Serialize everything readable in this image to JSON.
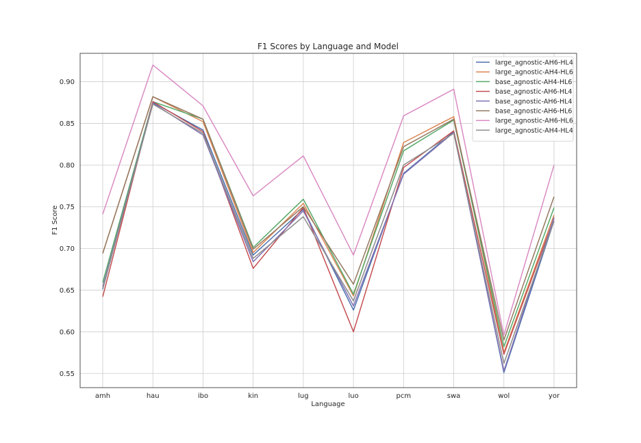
{
  "chart_data": {
    "type": "line",
    "title": "F1 Scores by Language and Model",
    "xlabel": "Language",
    "ylabel": "F1 Score",
    "categories": [
      "amh",
      "hau",
      "ibo",
      "kin",
      "lug",
      "luo",
      "pcm",
      "swa",
      "wol",
      "yor"
    ],
    "ylim": [
      0.533,
      0.934
    ],
    "yticks": [
      0.55,
      0.6,
      0.65,
      0.7,
      0.75,
      0.8,
      0.85,
      0.9
    ],
    "ytick_labels": [
      "0.55",
      "0.60",
      "0.65",
      "0.70",
      "0.75",
      "0.80",
      "0.85",
      "0.90"
    ],
    "grid": true,
    "legend_position": "top-right",
    "series": [
      {
        "name": "large_agnostic-AH6-HL4",
        "color": "#4c72b0",
        "values": [
          0.651,
          0.875,
          0.842,
          0.692,
          0.747,
          0.626,
          0.79,
          0.84,
          0.551,
          0.733
        ]
      },
      {
        "name": "large_agnostic-AH4-HL6",
        "color": "#dd8452",
        "values": [
          0.694,
          0.882,
          0.852,
          0.695,
          0.754,
          0.643,
          0.827,
          0.858,
          0.575,
          0.74
        ]
      },
      {
        "name": "base_agnostic-AH4-HL6",
        "color": "#55a868",
        "values": [
          0.659,
          0.876,
          0.855,
          0.701,
          0.759,
          0.645,
          0.817,
          0.854,
          0.582,
          0.749
        ]
      },
      {
        "name": "base_agnostic-AH6-HL4",
        "color": "#c44e52",
        "values": [
          0.642,
          0.876,
          0.84,
          0.676,
          0.749,
          0.6,
          0.797,
          0.841,
          0.573,
          0.736
        ]
      },
      {
        "name": "base_agnostic-AH6-HL4",
        "color": "#8172b3",
        "values": [
          0.654,
          0.874,
          0.836,
          0.684,
          0.745,
          0.631,
          0.789,
          0.839,
          0.553,
          0.737
        ]
      },
      {
        "name": "base_agnostic-AH6-HL6",
        "color": "#937860",
        "values": [
          0.694,
          0.882,
          0.855,
          0.699,
          0.75,
          0.657,
          0.822,
          0.855,
          0.59,
          0.762
        ]
      },
      {
        "name": "large_agnostic-AH6-HL6",
        "color": "#da8bc3",
        "values": [
          0.741,
          0.92,
          0.871,
          0.763,
          0.811,
          0.692,
          0.859,
          0.891,
          0.596,
          0.8
        ]
      },
      {
        "name": "large_agnostic-AH4-HL4",
        "color": "#8c8c8c",
        "values": [
          0.652,
          0.873,
          0.838,
          0.688,
          0.738,
          0.637,
          0.8,
          0.838,
          0.562,
          0.733
        ]
      }
    ]
  }
}
